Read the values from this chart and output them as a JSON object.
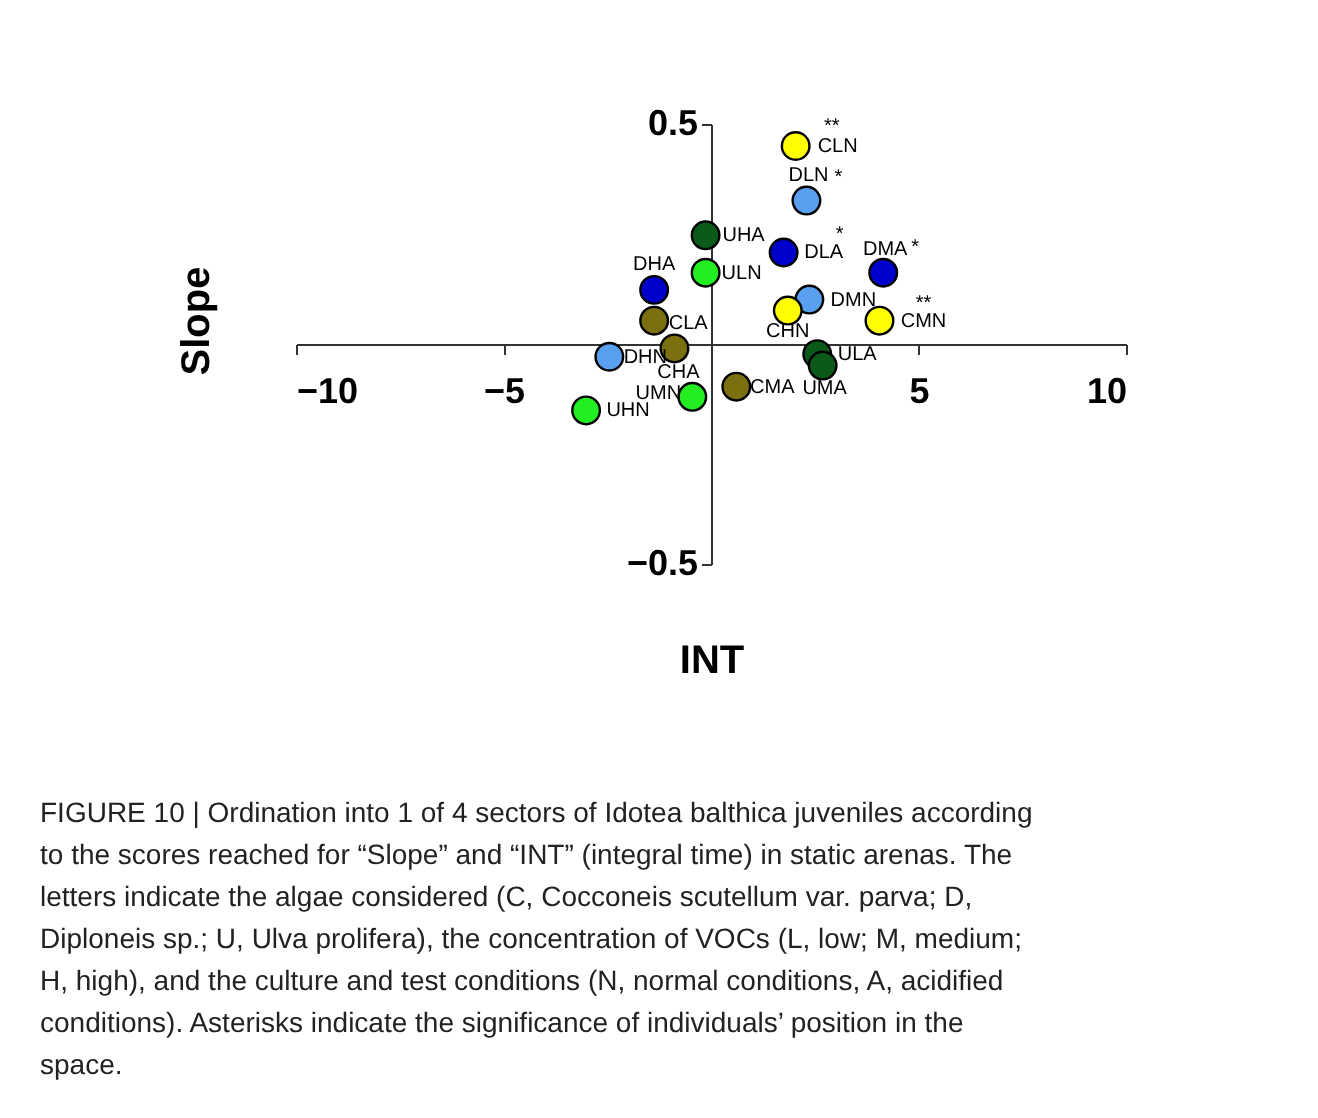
{
  "chart_data": {
    "type": "scatter",
    "xlabel": "INT",
    "ylabel": "Slope",
    "x": [
      2.04,
      2.3,
      -0.13,
      1.75,
      4.15,
      -0.13,
      -1.37,
      2.37,
      1.85,
      4.06,
      -1.37,
      -0.88,
      -2.45,
      2.56,
      2.69,
      0.61,
      -0.45,
      -3.01
    ],
    "values": [
      0.45,
      0.326,
      0.247,
      0.208,
      0.162,
      0.162,
      0.123,
      0.101,
      0.076,
      0.053,
      0.053,
      -0.01,
      -0.029,
      -0.023,
      -0.049,
      -0.097,
      -0.12,
      -0.151
    ],
    "colors": [
      "#ffff00",
      "#5aa0f0",
      "#0b5a1a",
      "#0000cc",
      "#0000cc",
      "#22ee22",
      "#0000cc",
      "#5aa0f0",
      "#ffff00",
      "#ffff00",
      "#7a7010",
      "#7a7010",
      "#5aa0f0",
      "#0b5a1a",
      "#0b5a1a",
      "#7a7010",
      "#22ee22",
      "#22ee22"
    ],
    "xlim": [
      -10,
      10
    ],
    "ylim": [
      -0.5,
      0.5
    ],
    "xticks": [
      -10,
      -5,
      5,
      10
    ],
    "yticks": [
      -0.5,
      0.5
    ],
    "grid": false,
    "legend": false,
    "marker": "circle",
    "annotations": [
      {
        "text": "CLN",
        "x": 2.04,
        "y": 0.45
      },
      {
        "text": "**",
        "x": 2.04,
        "y": 0.45
      },
      {
        "text": "DLN",
        "x": 2.3,
        "y": 0.326
      },
      {
        "text": "*",
        "x": 2.3,
        "y": 0.326
      },
      {
        "text": "UHA",
        "x": -0.13,
        "y": 0.247
      },
      {
        "text": "DLA",
        "x": 1.75,
        "y": 0.208
      },
      {
        "text": "*",
        "x": 1.75,
        "y": 0.208
      },
      {
        "text": "DMA",
        "x": 4.15,
        "y": 0.162
      },
      {
        "text": "*",
        "x": 4.15,
        "y": 0.162
      },
      {
        "text": "ULN",
        "x": -0.13,
        "y": 0.162
      },
      {
        "text": "DHA",
        "x": -1.37,
        "y": 0.123
      },
      {
        "text": "DMN",
        "x": 2.37,
        "y": 0.101
      },
      {
        "text": "CHN",
        "x": 1.85,
        "y": 0.076
      },
      {
        "text": "CMN",
        "x": 4.06,
        "y": 0.053
      },
      {
        "text": "**",
        "x": 4.06,
        "y": 0.053
      },
      {
        "text": "CLA",
        "x": -1.37,
        "y": 0.053
      },
      {
        "text": "CHA",
        "x": -0.88,
        "y": -0.01
      },
      {
        "text": "DHN",
        "x": -2.45,
        "y": -0.029
      },
      {
        "text": "ULA",
        "x": 2.56,
        "y": -0.023
      },
      {
        "text": "UMA",
        "x": 2.69,
        "y": -0.049
      },
      {
        "text": "CMA",
        "x": 0.61,
        "y": -0.097
      },
      {
        "text": "UMN",
        "x": -0.45,
        "y": -0.12
      },
      {
        "text": "UHN",
        "x": -3.01,
        "y": -0.151
      },
      "FIGURE 10 | Ordination into 1 of 4 sectors of Idotea balthica juveniles according to the scores reached for “Slope” and “INT” (integral time) in static arenas. The letters indicate the algae considered (C, Cocconeis scutellum var. parva; D, Diploneis sp.; U, Ulva prolifera), the concentration of VOCs (L, low; M, medium; H, high), and the culture and test conditions (N, normal conditions, A, acidified conditions). Asterisks indicate the significance of individuals’ position in the space."
    ]
  }
}
